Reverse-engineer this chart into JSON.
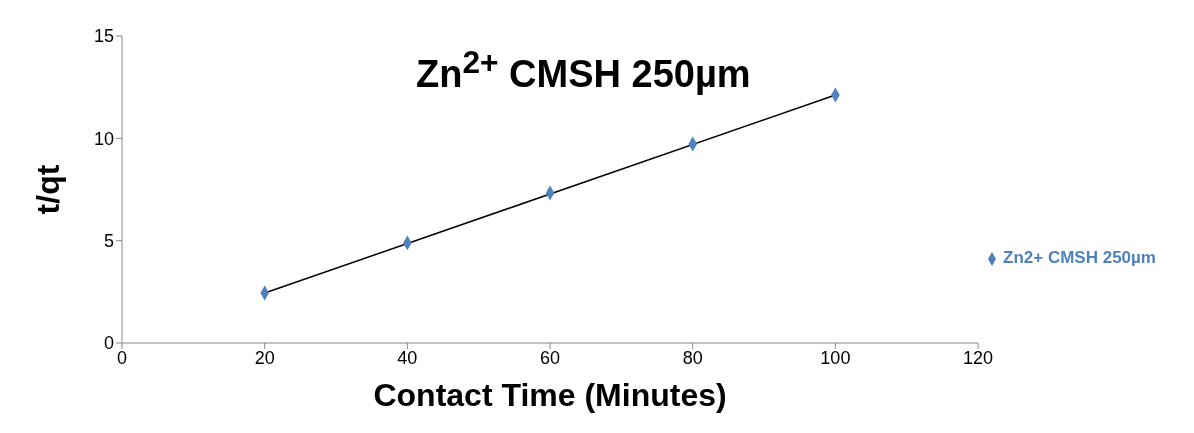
{
  "chart_data": {
    "type": "scatter",
    "title": "Zn$^{2+}$ CMSH 250µm",
    "xlabel": "Contact Time (Minutes)",
    "ylabel": "t/qt",
    "x": [
      20,
      40,
      60,
      80,
      100
    ],
    "series": [
      {
        "name": "Zn2+ CMSH 250µm",
        "color": "#4f81bd",
        "values": [
          2.44,
          4.89,
          7.33,
          9.72,
          12.12
        ],
        "marker": "diamond"
      },
      {
        "type": "line",
        "color": "#000000",
        "x": [
          20,
          100
        ],
        "values": [
          2.44,
          12.12
        ],
        "marker": "none"
      }
    ],
    "xlim": [
      0,
      120
    ],
    "xticks": [
      0,
      20,
      40,
      60,
      80,
      100,
      120
    ],
    "ylim": [
      0,
      15
    ],
    "yticks": [
      0,
      5,
      10,
      15
    ],
    "grid": false,
    "legend": "right"
  }
}
